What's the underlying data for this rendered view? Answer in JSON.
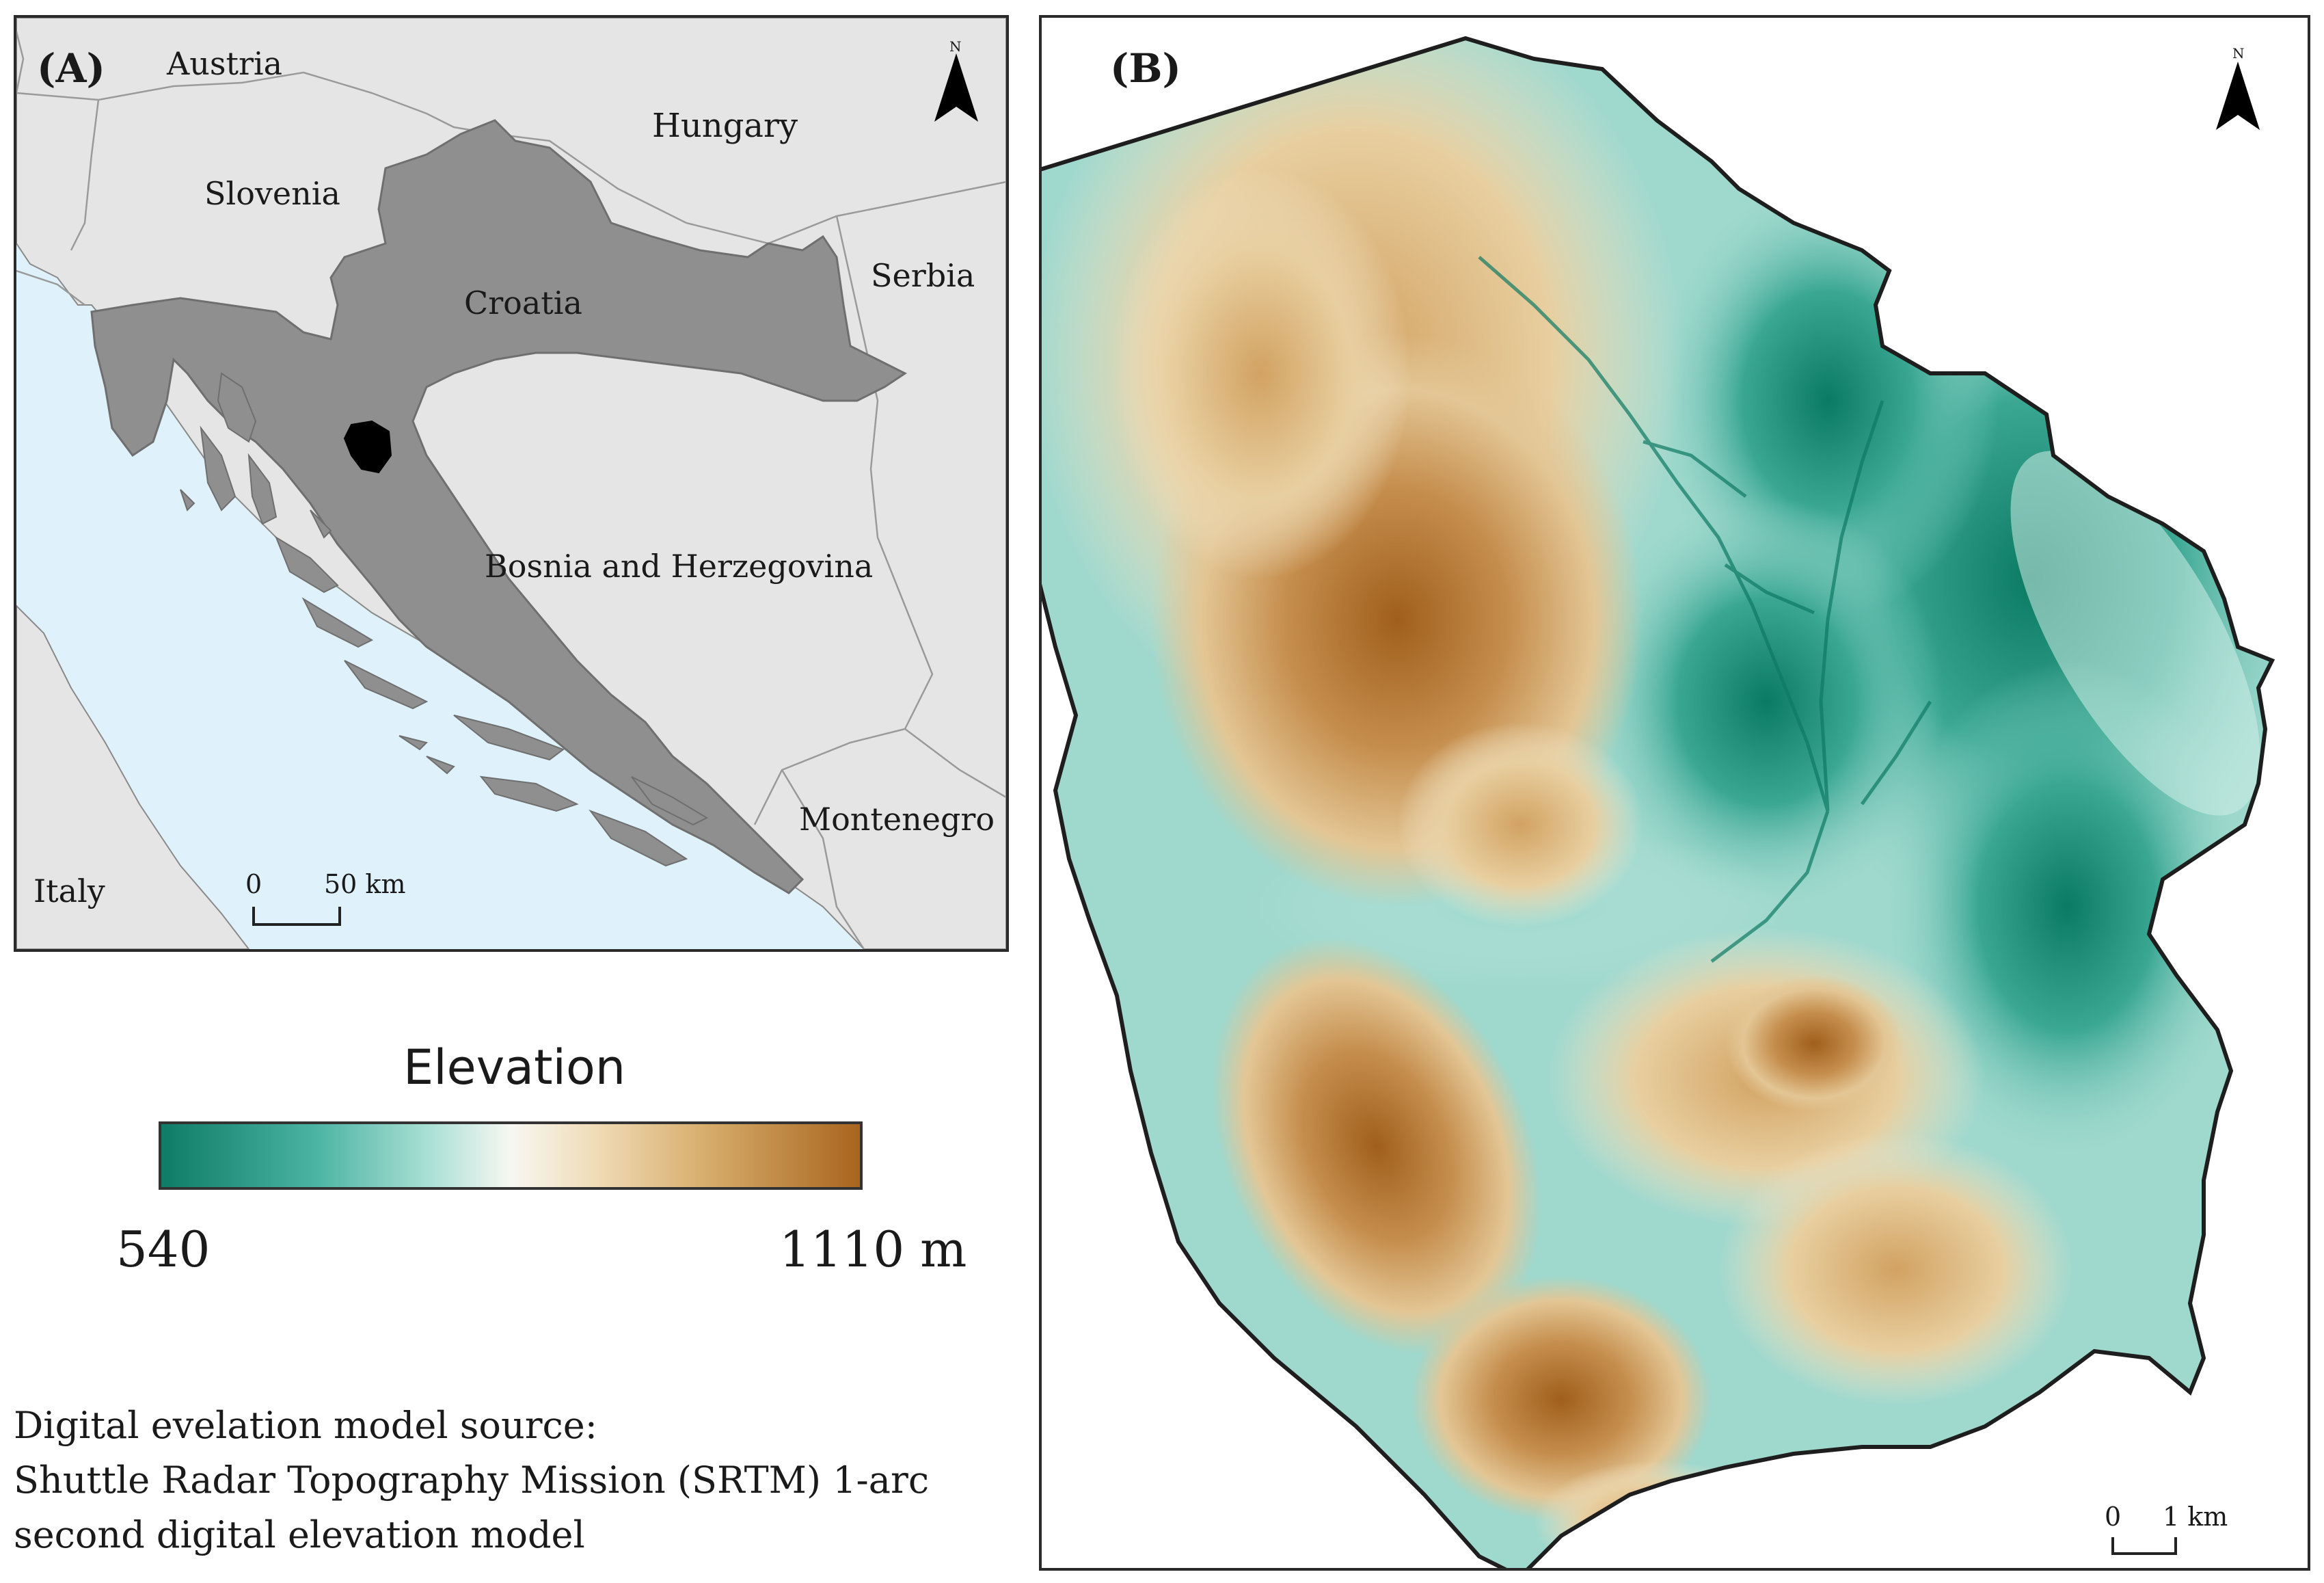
{
  "panel_a": {
    "label": "(A)",
    "countries": {
      "austria": "Austria",
      "hungary": "Hungary",
      "slovenia": "Slovenia",
      "croatia": "Croatia",
      "serbia": "Serbia",
      "bosnia": "Bosnia and Herzegovina",
      "montenegro": "Montenegro",
      "italy": "Italy"
    },
    "north": "N",
    "scale": {
      "zero": "0",
      "value": "50 km"
    },
    "colors": {
      "land": "#e5e5e5",
      "croatia": "#8f8f8f",
      "sea": "#dff1fa",
      "study_area": "#000000"
    }
  },
  "panel_b": {
    "label": "(B)",
    "north": "N",
    "scale": {
      "zero": "0",
      "value": "1 km"
    }
  },
  "legend": {
    "title": "Elevation",
    "min_label": "540",
    "max_label": "1110 m",
    "colors": [
      "#0d7c66",
      "#4bb3a2",
      "#a8dfd4",
      "#f7f7f2",
      "#f0dcb8",
      "#d7ad6b",
      "#a8651f"
    ]
  },
  "source": {
    "line1": "Digital evelation model source:",
    "line2": "Shuttle Radar Topography Mission (SRTM) 1-arc",
    "line3": "second digital elevation model"
  }
}
